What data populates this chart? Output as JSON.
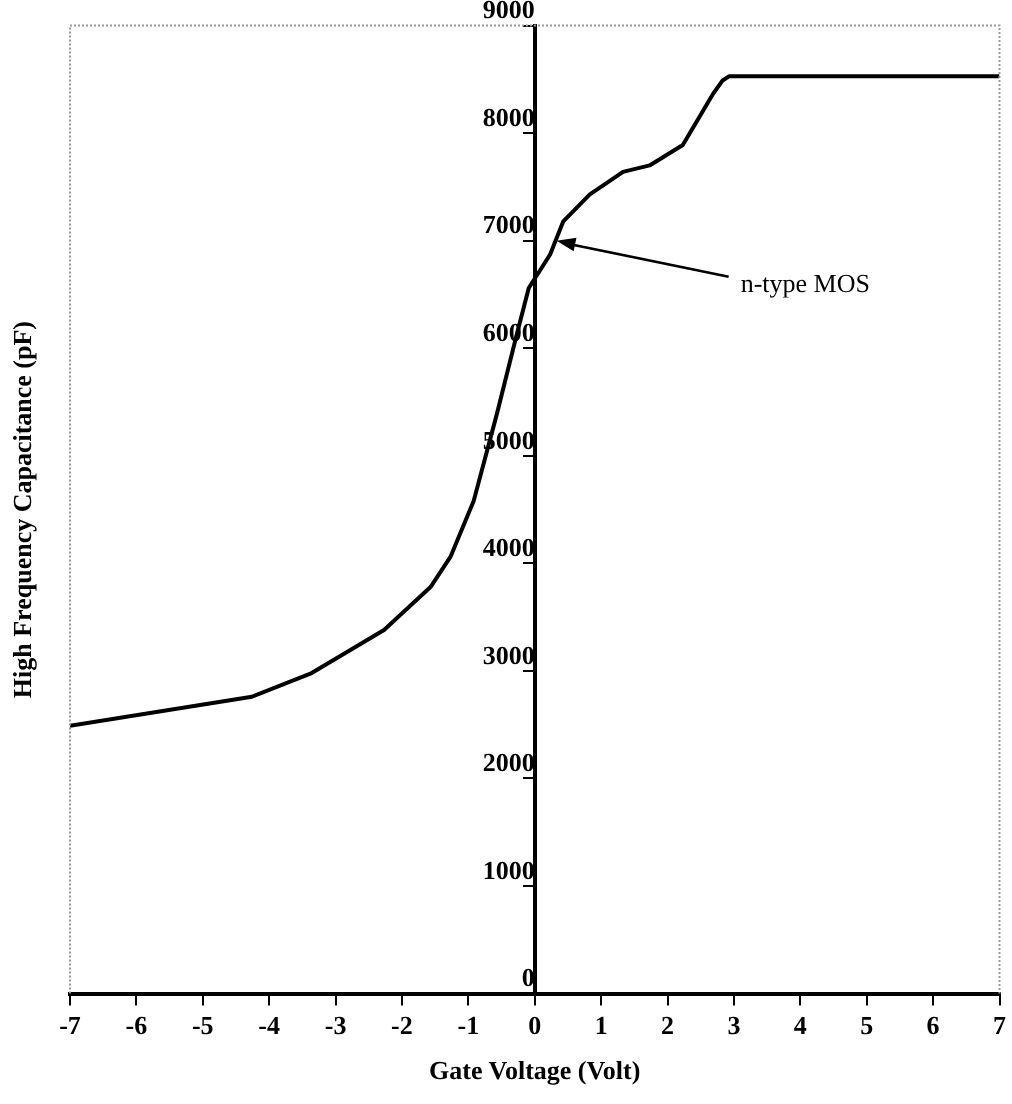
{
  "chart_data": {
    "type": "line",
    "xlabel": "Gate Voltage (Volt)",
    "ylabel": "High Frequency Capacitance (pF)",
    "xlim": [
      -7,
      7
    ],
    "xticks": [
      -7,
      -6,
      -5,
      -4,
      -3,
      -2,
      -1,
      0,
      1,
      2,
      3,
      4,
      5,
      6,
      7
    ],
    "ylim": [
      0,
      9000
    ],
    "yticks": [
      0,
      1000,
      2000,
      3000,
      4000,
      5000,
      6000,
      7000,
      8000,
      9000
    ],
    "grid": false,
    "legend": false,
    "marker": "none",
    "line_style": "solid",
    "series": [
      {
        "color": "#000000",
        "x": [
          -7,
          -4.26,
          -3.36,
          -2.27,
          -1.57,
          -1.27,
          -0.92,
          -0.57,
          -0.27,
          -0.09,
          0.23,
          0.43,
          0.83,
          1.33,
          1.73,
          2.23,
          2.68,
          2.83,
          2.93,
          7
        ],
        "values": [
          2490,
          2760,
          2980,
          3380,
          3780,
          4060,
          4580,
          5390,
          6130,
          6560,
          6870,
          7180,
          7430,
          7640,
          7700,
          7890,
          8360,
          8490,
          8530,
          8530
        ]
      }
    ],
    "annotations": [
      {
        "text": "n-type MOS",
        "x": 0.33,
        "y": 7000
      }
    ]
  }
}
